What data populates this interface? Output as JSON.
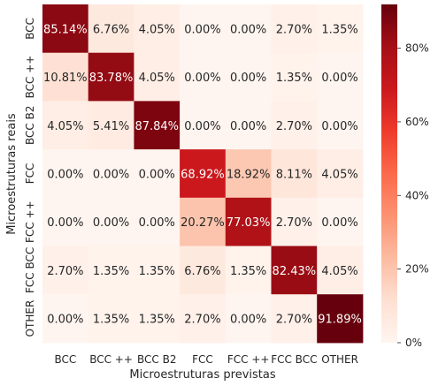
{
  "chart_data": {
    "type": "heatmap",
    "title": "",
    "xlabel": "Microestruturas previstas",
    "ylabel": "Microestruturas reais",
    "x_categories": [
      "BCC",
      "BCC ++",
      "BCC B2",
      "FCC",
      "FCC ++",
      "FCC BCC",
      "OTHER"
    ],
    "y_categories": [
      "BCC",
      "BCC ++",
      "BCC B2",
      "FCC",
      "FCC ++",
      "FCC BCC",
      "OTHER"
    ],
    "values": [
      [
        85.14,
        6.76,
        4.05,
        0.0,
        0.0,
        2.7,
        1.35
      ],
      [
        10.81,
        83.78,
        4.05,
        0.0,
        0.0,
        1.35,
        0.0
      ],
      [
        4.05,
        5.41,
        87.84,
        0.0,
        0.0,
        2.7,
        0.0
      ],
      [
        0.0,
        0.0,
        0.0,
        68.92,
        18.92,
        8.11,
        4.05
      ],
      [
        0.0,
        0.0,
        0.0,
        20.27,
        77.03,
        2.7,
        0.0
      ],
      [
        2.7,
        1.35,
        1.35,
        6.76,
        1.35,
        82.43,
        4.05
      ],
      [
        0.0,
        1.35,
        1.35,
        2.7,
        0.0,
        2.7,
        91.89
      ]
    ],
    "cell_labels": [
      [
        "85.14%",
        "6.76%",
        "4.05%",
        "0.00%",
        "0.00%",
        "2.70%",
        "1.35%"
      ],
      [
        "10.81%",
        "83.78%",
        "4.05%",
        "0.00%",
        "0.00%",
        "1.35%",
        "0.00%"
      ],
      [
        "4.05%",
        "5.41%",
        "87.84%",
        "0.00%",
        "0.00%",
        "2.70%",
        "0.00%"
      ],
      [
        "0.00%",
        "0.00%",
        "0.00%",
        "68.92%",
        "18.92%",
        "8.11%",
        "4.05%"
      ],
      [
        "0.00%",
        "0.00%",
        "0.00%",
        "20.27%",
        "77.03%",
        "2.70%",
        "0.00%"
      ],
      [
        "2.70%",
        "1.35%",
        "1.35%",
        "6.76%",
        "1.35%",
        "82.43%",
        "4.05%"
      ],
      [
        "0.00%",
        "1.35%",
        "1.35%",
        "2.70%",
        "0.00%",
        "2.70%",
        "91.89%"
      ]
    ],
    "colormap": "Reds",
    "colorbar": {
      "range": [
        0,
        91.89
      ],
      "ticks": [
        0,
        20,
        40,
        60,
        80
      ],
      "tick_labels": [
        "0%",
        "20%",
        "40%",
        "60%",
        "80%"
      ]
    },
    "grid": false,
    "legend": "colorbar-right"
  }
}
